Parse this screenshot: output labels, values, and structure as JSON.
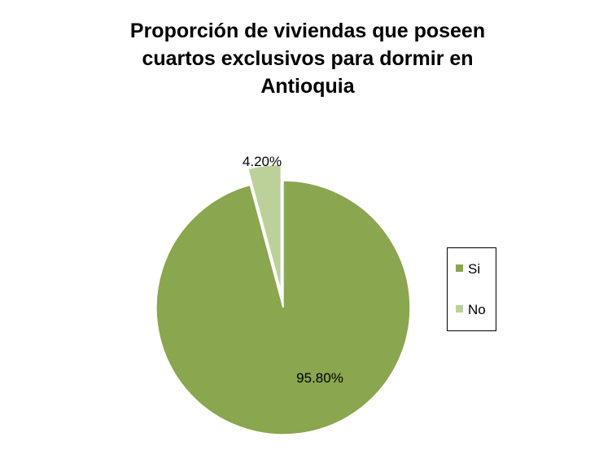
{
  "chart_data": {
    "type": "pie",
    "title": "Proporción de viviendas que poseen cuartos exclusivos para dormir en Antioquia",
    "title_lines": [
      "Proporción de viviendas que poseen",
      "cuartos exclusivos para dormir en",
      "Antioquia"
    ],
    "categories": [
      "Si",
      "No"
    ],
    "values": [
      95.8,
      4.2
    ],
    "data_labels": [
      "95.80%",
      "4.20%"
    ],
    "colors": [
      "#8aa64e",
      "#bcd19a"
    ],
    "exploded_slice": "No",
    "start_angle": "12 o'clock, clockwise",
    "legend": {
      "position": "right",
      "entries": [
        "Si",
        "No"
      ]
    }
  }
}
